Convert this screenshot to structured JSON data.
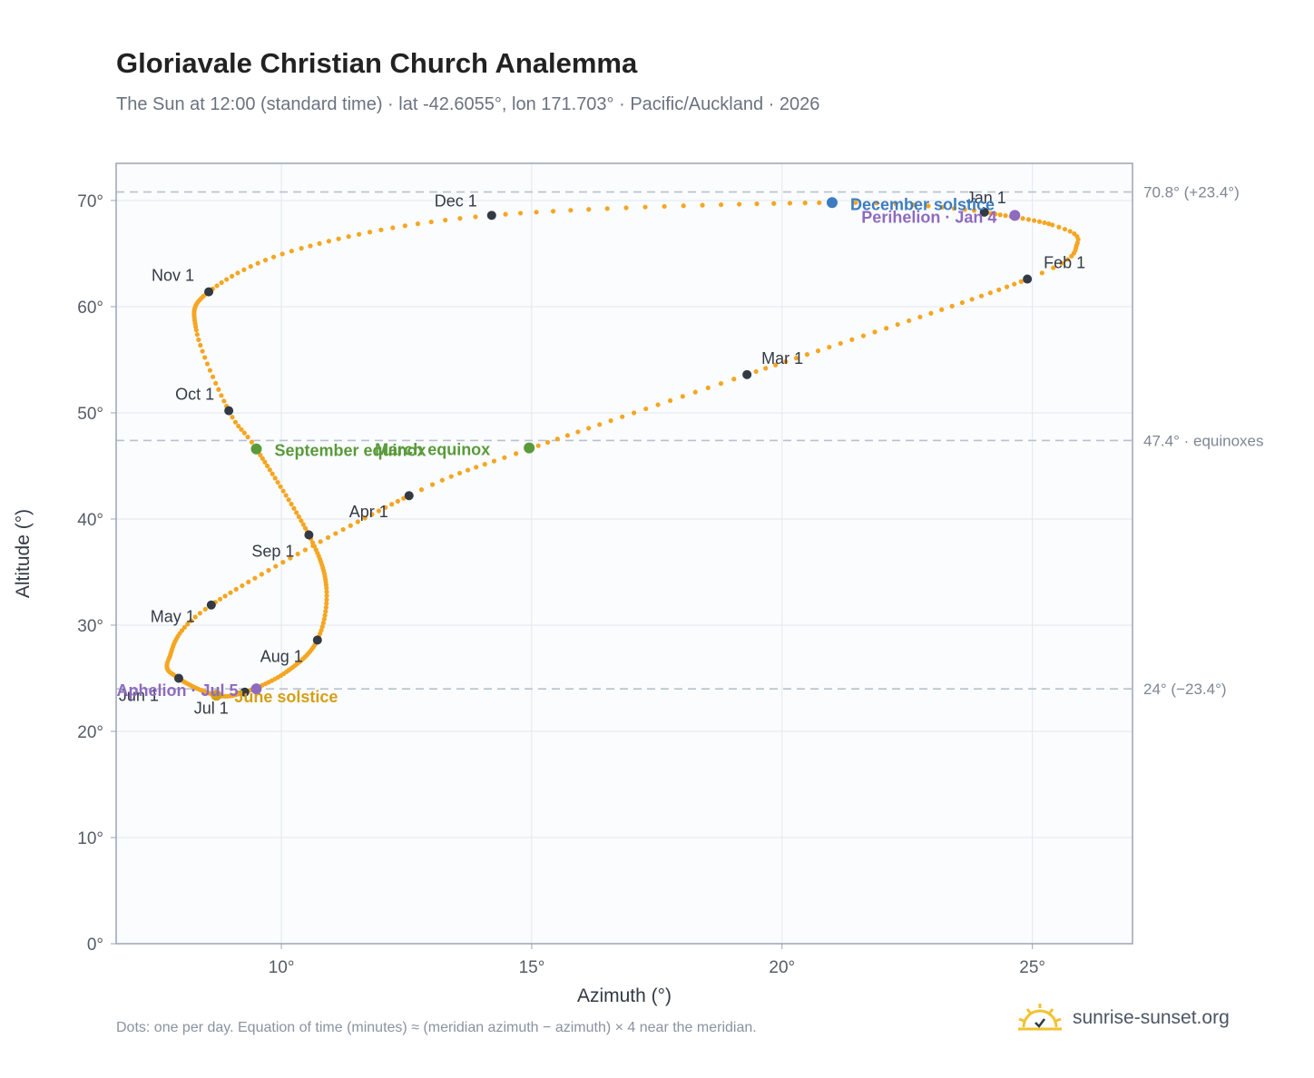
{
  "header": {
    "title": "Gloriavale Christian Church Analemma",
    "subtitle": "The Sun at 12:00 (standard time) · lat -42.6055°, lon 171.703° · Pacific/Auckland · 2026"
  },
  "footer": {
    "note": "Dots: one per day. Equation of time (minutes) ≈ (meridian azimuth − azimuth) × 4 near the meridian.",
    "brand": "sunrise-sunset.org"
  },
  "colors": {
    "curve": "#f5a623",
    "month_marker": "#333a44",
    "equinox": "#5a9a3a",
    "december_solstice": "#3d7cc0",
    "june_solstice": "#d4a017",
    "apsis": "#8e6bbf",
    "reference_line": "#b8c2cc",
    "plot_background": "#fafcfe",
    "grid": "#e3e8ee",
    "brand_sun": "#f2c230"
  },
  "chart_data": {
    "type": "scatter",
    "title": "Gloriavale Christian Church Analemma",
    "xlabel": "Azimuth (°)",
    "ylabel": "Altitude (°)",
    "xlim": [
      6.7,
      27.0
    ],
    "ylim": [
      0,
      73.5
    ],
    "x_ticks": [
      10,
      15,
      20,
      25
    ],
    "x_tick_labels": [
      "10°",
      "15°",
      "20°",
      "25°"
    ],
    "y_ticks": [
      0,
      10,
      20,
      30,
      40,
      50,
      60,
      70
    ],
    "y_tick_labels": [
      "0°",
      "10°",
      "20°",
      "30°",
      "40°",
      "50°",
      "60°",
      "70°"
    ],
    "grid": true,
    "series": [
      {
        "points_note": "one dot per day, Jan 1 – Dec 31, interpolated from the anchor points",
        "anchors": [
          {
            "date": "Jan 1",
            "x": 24.04,
            "y": 68.9
          },
          {
            "date": "Jan 15",
            "x": 25.4,
            "y": 67.7
          },
          {
            "date": "Jan 22",
            "x": 25.9,
            "y": 66.0
          },
          {
            "date": "Feb 1",
            "x": 24.9,
            "y": 62.6
          },
          {
            "date": "Mar 1",
            "x": 19.3,
            "y": 53.6
          },
          {
            "date": "Mar 20",
            "x": 14.95,
            "y": 46.6
          },
          {
            "date": "Apr 1",
            "x": 12.55,
            "y": 42.2
          },
          {
            "date": "May 1",
            "x": 8.6,
            "y": 31.9
          },
          {
            "date": "May 20",
            "x": 7.75,
            "y": 26.8
          },
          {
            "date": "Jun 1",
            "x": 7.95,
            "y": 25.0
          },
          {
            "date": "Jun 21",
            "x": 8.7,
            "y": 23.4
          },
          {
            "date": "Jul 1",
            "x": 9.27,
            "y": 23.7
          },
          {
            "date": "Jul 15",
            "x": 10.1,
            "y": 25.6
          },
          {
            "date": "Aug 1",
            "x": 10.72,
            "y": 28.6
          },
          {
            "date": "Aug 15",
            "x": 10.9,
            "y": 33.5
          },
          {
            "date": "Sep 1",
            "x": 10.55,
            "y": 38.5
          },
          {
            "date": "Sep 23",
            "x": 9.5,
            "y": 46.6
          },
          {
            "date": "Oct 1",
            "x": 8.95,
            "y": 50.2
          },
          {
            "date": "Oct 15",
            "x": 8.3,
            "y": 57.8
          },
          {
            "date": "Nov 1",
            "x": 8.55,
            "y": 61.4
          },
          {
            "date": "Nov 15",
            "x": 10.4,
            "y": 65.5
          },
          {
            "date": "Dec 1",
            "x": 14.2,
            "y": 68.6
          },
          {
            "date": "Dec 21",
            "x": 21.0,
            "y": 69.8
          },
          {
            "date": "Dec 31",
            "x": 24.0,
            "y": 69.0
          }
        ]
      }
    ],
    "month_markers": [
      {
        "label": "Jan 1",
        "x": 24.04,
        "y": 68.9
      },
      {
        "label": "Feb 1",
        "x": 24.9,
        "y": 62.6
      },
      {
        "label": "Mar 1",
        "x": 19.3,
        "y": 53.6
      },
      {
        "label": "Apr 1",
        "x": 12.55,
        "y": 42.2
      },
      {
        "label": "May 1",
        "x": 8.6,
        "y": 31.9
      },
      {
        "label": "Jun 1",
        "x": 7.95,
        "y": 25.0
      },
      {
        "label": "Jul 1",
        "x": 9.27,
        "y": 23.7
      },
      {
        "label": "Aug 1",
        "x": 10.72,
        "y": 28.6
      },
      {
        "label": "Sep 1",
        "x": 10.55,
        "y": 38.5
      },
      {
        "label": "Oct 1",
        "x": 8.95,
        "y": 50.2
      },
      {
        "label": "Nov 1",
        "x": 8.55,
        "y": 61.4
      },
      {
        "label": "Dec 1",
        "x": 14.2,
        "y": 68.6
      }
    ],
    "events": [
      {
        "label": "December solstice",
        "x": 21.0,
        "y": 69.8,
        "kind": "december_solstice"
      },
      {
        "label": "Perihelion · Jan 4",
        "x": 24.65,
        "y": 68.6,
        "kind": "apsis"
      },
      {
        "label": "March equinox",
        "x": 14.95,
        "y": 46.7,
        "kind": "equinox"
      },
      {
        "label": "September equinox",
        "x": 9.5,
        "y": 46.6,
        "kind": "equinox"
      },
      {
        "label": "June solstice",
        "x": 8.7,
        "y": 23.4,
        "kind": "june_solstice"
      },
      {
        "label": "Aphelion · Jul 5",
        "x": 9.5,
        "y": 24.0,
        "kind": "apsis"
      }
    ],
    "reference_lines": [
      {
        "y": 70.8,
        "label": "70.8° (+23.4°)"
      },
      {
        "y": 47.4,
        "label": "47.4° · equinoxes"
      },
      {
        "y": 24.0,
        "label": "24° (−23.4°)"
      }
    ]
  }
}
